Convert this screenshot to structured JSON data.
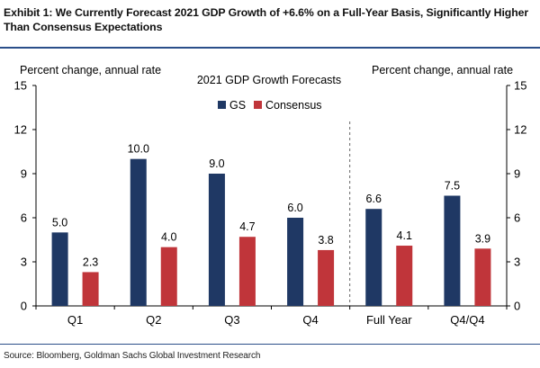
{
  "header": {
    "title": "Exhibit 1: We Currently Forecast 2021 GDP Growth of +6.6% on a Full-Year Basis, Significantly Higher Than Consensus Expectations"
  },
  "footer": {
    "source": "Source: Bloomberg, Goldman Sachs Global Investment Research"
  },
  "chart_data": {
    "type": "bar",
    "title": "2021 GDP Growth Forecasts",
    "ylabel_left": "Percent change, annual rate",
    "ylabel_right": "Percent change, annual rate",
    "categories": [
      "Q1",
      "Q2",
      "Q3",
      "Q4",
      "Full Year",
      "Q4/Q4"
    ],
    "series": [
      {
        "name": "GS",
        "values": [
          5.0,
          10.0,
          9.0,
          6.0,
          6.6,
          7.5
        ],
        "color": "#1f3864"
      },
      {
        "name": "Consensus",
        "values": [
          2.3,
          4.0,
          4.7,
          3.8,
          4.1,
          3.9
        ],
        "color": "#c0353a"
      }
    ],
    "value_labels": {
      "GS": [
        "5.0",
        "10.0",
        "9.0",
        "6.0",
        "6.6",
        "7.5"
      ],
      "Consensus": [
        "2.3",
        "4.0",
        "4.7",
        "3.8",
        "4.1",
        "3.9"
      ]
    },
    "ylim": [
      0,
      15
    ],
    "yticks": [
      0,
      3,
      6,
      9,
      12,
      15
    ],
    "ytick_labels": [
      "0",
      "3",
      "6",
      "9",
      "12",
      "15"
    ],
    "divider_after_category": "Q4",
    "grid": false,
    "legend_position": "top-center"
  }
}
